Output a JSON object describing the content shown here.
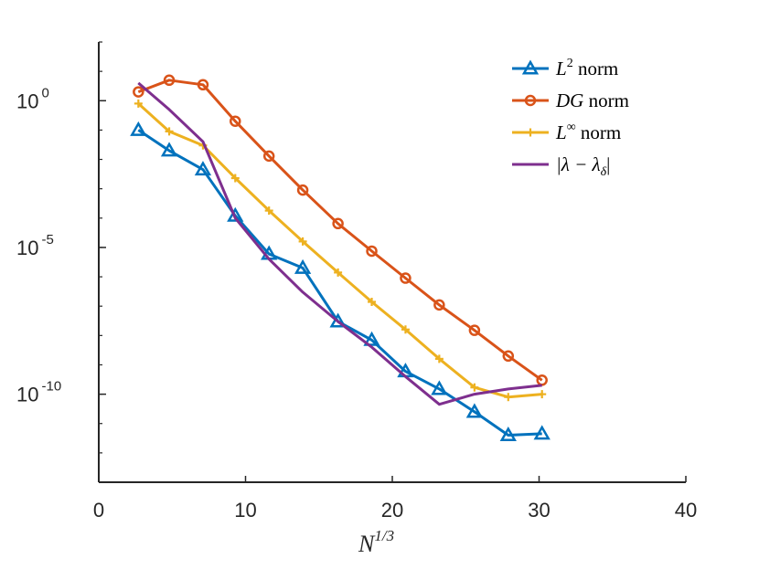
{
  "chart_data": {
    "type": "line",
    "xlabel": "N",
    "xlabel_exponent": "1/3",
    "ylabel": "",
    "xlim": [
      0,
      40
    ],
    "ylim_log10": [
      -13,
      2
    ],
    "y_scale": "log",
    "x_ticks": [
      "0",
      "10",
      "20",
      "30",
      "40"
    ],
    "y_ticks": [
      {
        "base": "10",
        "exp": "0",
        "value": 1
      },
      {
        "base": "10",
        "exp": "-5",
        "value": 1e-05
      },
      {
        "base": "10",
        "exp": "-10",
        "value": 1e-10
      }
    ],
    "grid": false,
    "legend_position": "top-right",
    "series": [
      {
        "name": "L2 norm",
        "legend_base": "L",
        "legend_sup": "2",
        "legend_rest": " norm",
        "color": "#0072BD",
        "marker": "triangle",
        "x": [
          2.7,
          4.8,
          7.1,
          9.3,
          11.6,
          13.9,
          16.3,
          18.6,
          20.9,
          23.2,
          25.6,
          27.9,
          30.2
        ],
        "y": [
          0.1,
          0.02,
          0.0045,
          0.00012,
          6e-06,
          2e-06,
          3e-08,
          7e-09,
          6e-10,
          1.5e-10,
          2.5e-11,
          4e-12,
          4.5e-12
        ]
      },
      {
        "name": "DG norm",
        "legend_base": "DG",
        "legend_sup": "",
        "legend_rest": " norm",
        "color": "#D95319",
        "marker": "circle",
        "x": [
          2.7,
          4.8,
          7.1,
          9.3,
          11.6,
          13.9,
          16.3,
          18.6,
          20.9,
          23.2,
          25.6,
          27.9,
          30.2
        ],
        "y": [
          2.0,
          5.0,
          3.5,
          0.2,
          0.013,
          0.0009,
          6.5e-05,
          7.5e-06,
          9e-07,
          1.1e-07,
          1.5e-08,
          2e-09,
          3e-10
        ]
      },
      {
        "name": "L∞ norm",
        "legend_base": "L",
        "legend_sup": "∞",
        "legend_rest": " norm",
        "color": "#EDB120",
        "marker": "plus",
        "x": [
          2.7,
          4.8,
          7.1,
          9.3,
          11.6,
          13.9,
          16.3,
          18.6,
          20.9,
          23.2,
          25.6,
          27.9,
          30.2
        ],
        "y": [
          0.8,
          0.09,
          0.03,
          0.0023,
          0.00018,
          1.6e-05,
          1.4e-06,
          1.4e-07,
          1.6e-08,
          1.6e-09,
          1.7e-10,
          8e-11,
          1e-10
        ]
      },
      {
        "name": "|λ − λδ|",
        "legend_base": "|λ − λ",
        "legend_sup": "",
        "legend_sub": "δ",
        "legend_rest": "|",
        "color": "#7E2F8E",
        "marker": "none",
        "x": [
          2.7,
          4.8,
          7.1,
          9.3,
          11.6,
          13.9,
          16.3,
          18.6,
          20.9,
          23.2,
          25.6,
          27.9,
          30.2
        ],
        "y": [
          4.0,
          0.5,
          0.04,
          0.0001,
          4e-06,
          3e-07,
          3e-08,
          4e-09,
          4e-10,
          4.5e-11,
          1e-10,
          1.5e-10,
          2e-10
        ]
      }
    ]
  }
}
